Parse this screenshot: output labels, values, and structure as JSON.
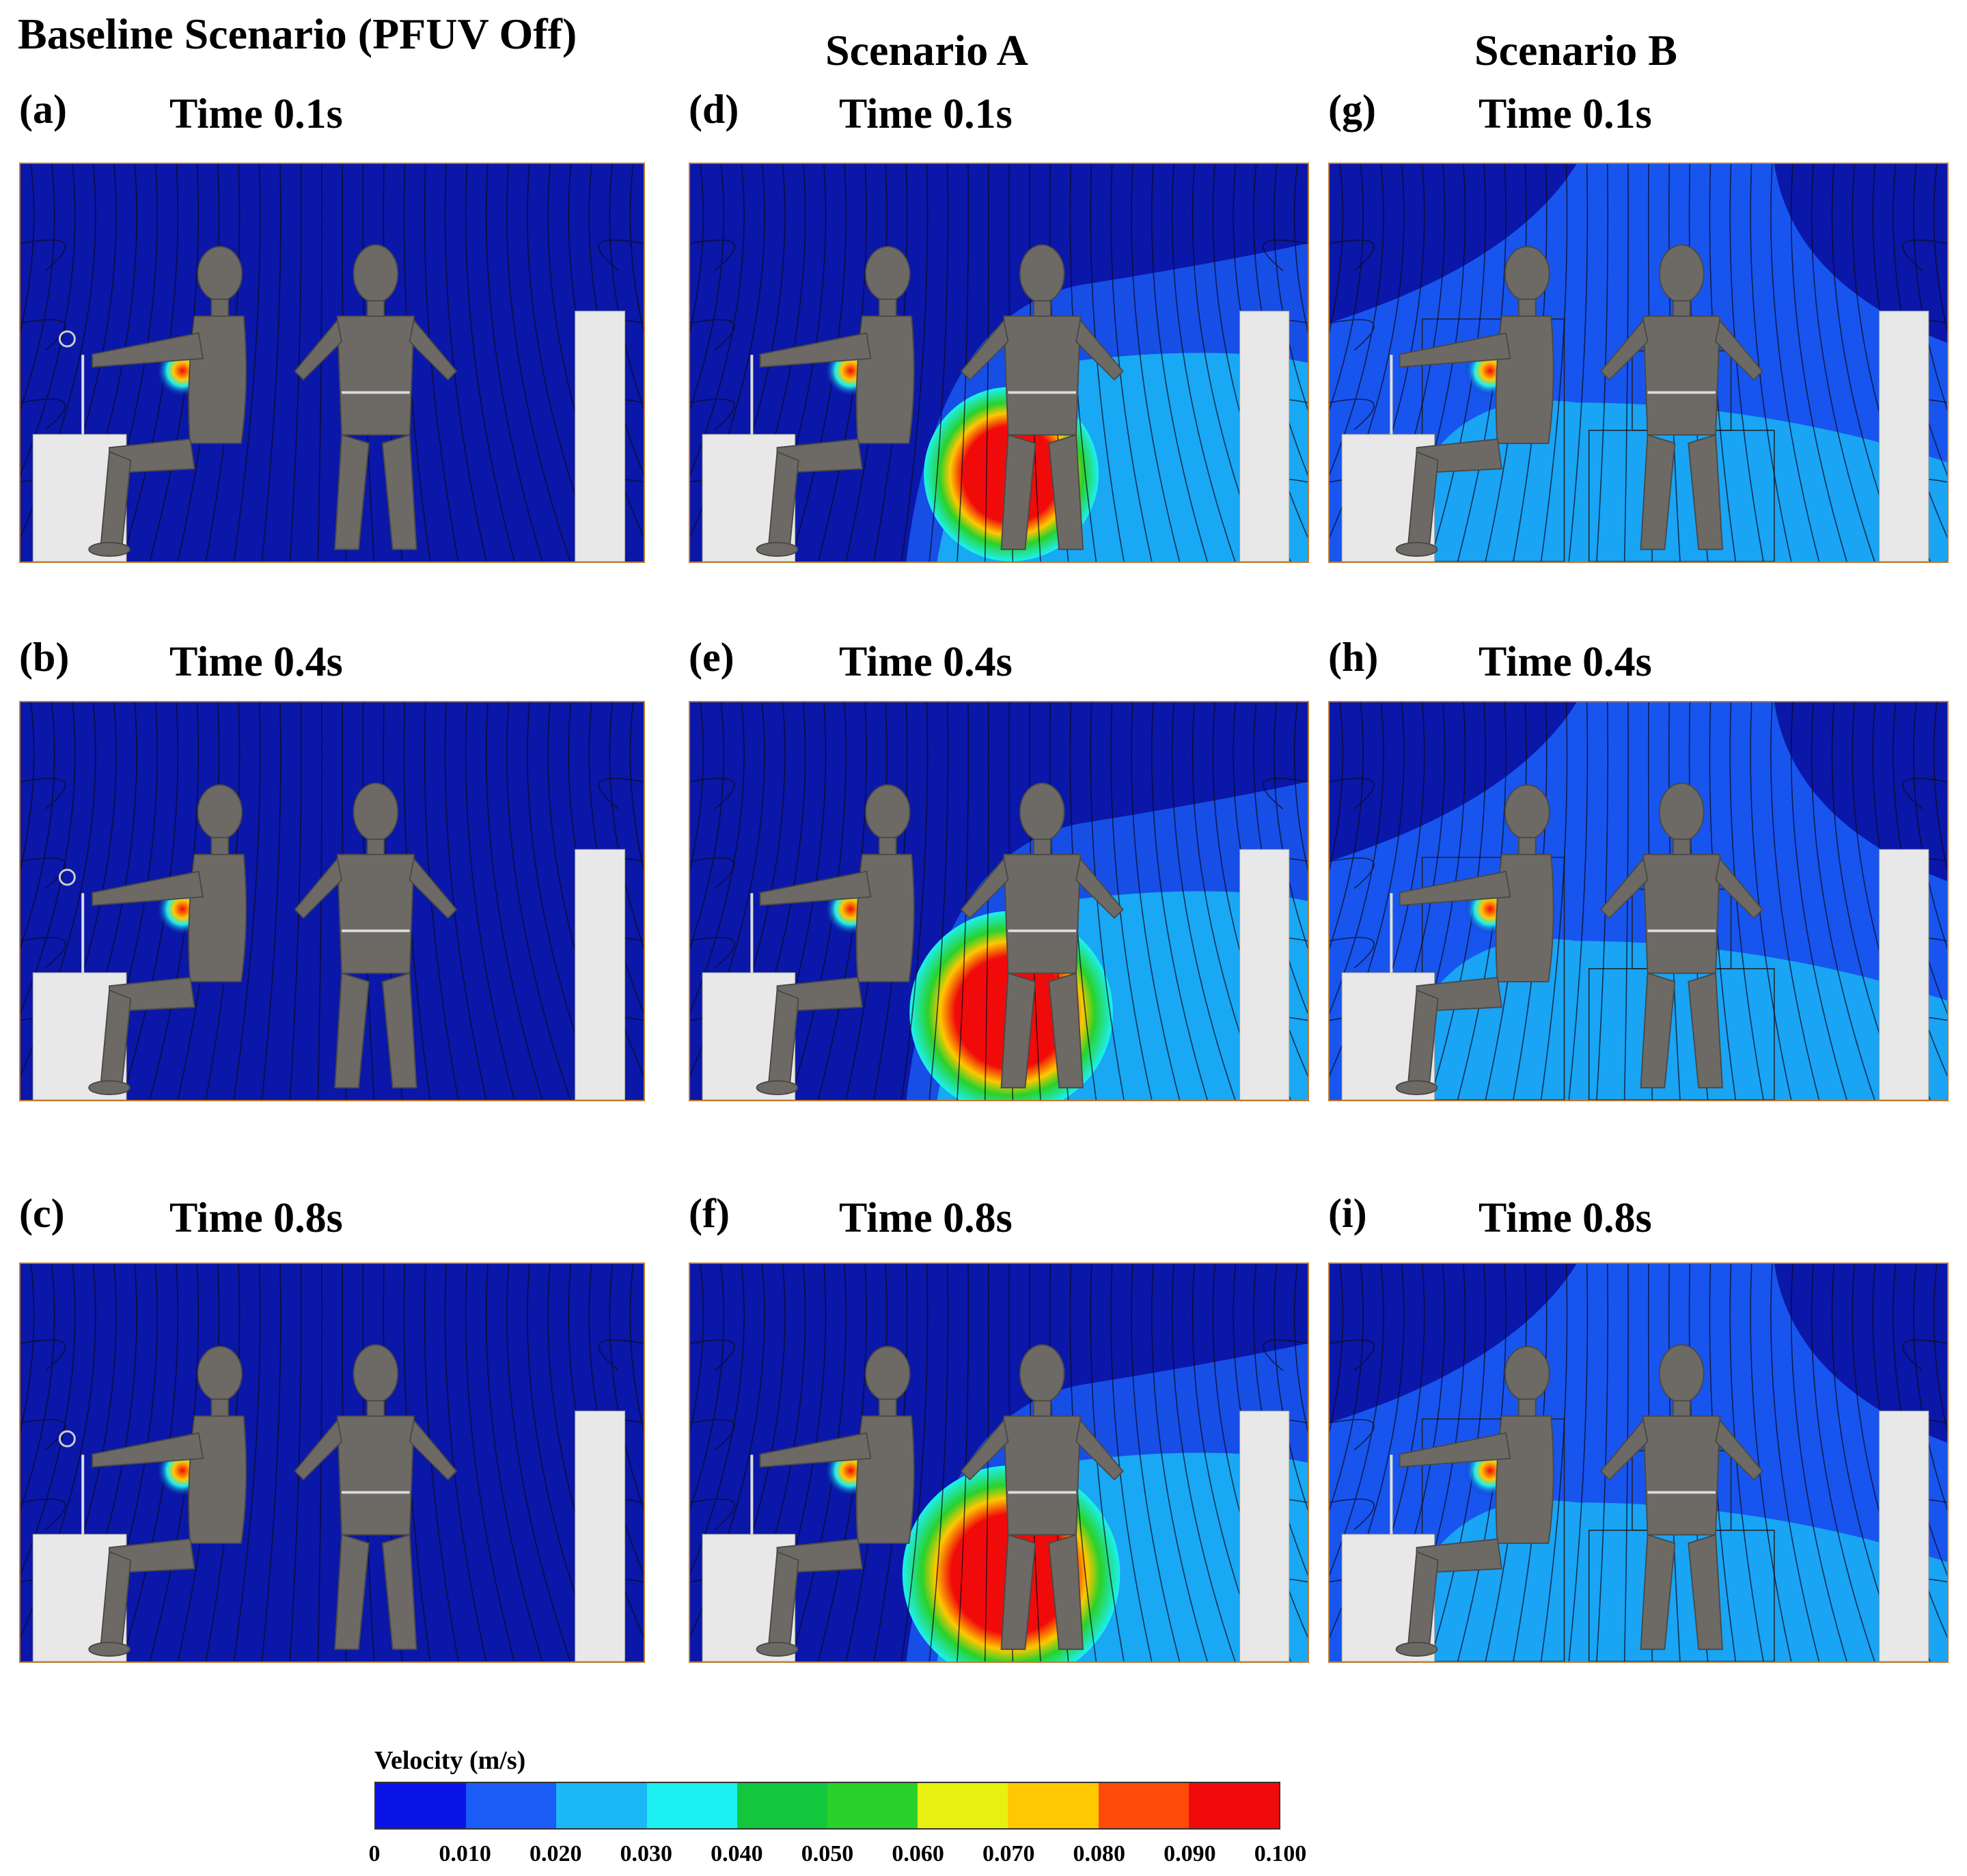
{
  "title": "Baseline Scenario (PFUV Off)",
  "columns": [
    "Scenario A",
    "Scenario B"
  ],
  "panels": [
    {
      "label": "(a)",
      "time": "Time 0.1s",
      "scenario": "baseline",
      "bubble": 0
    },
    {
      "label": "(b)",
      "time": "Time 0.4s",
      "scenario": "baseline",
      "bubble": 0
    },
    {
      "label": "(c)",
      "time": "Time 0.8s",
      "scenario": "baseline",
      "bubble": 0
    },
    {
      "label": "(d)",
      "time": "Time 0.1s",
      "scenario": "A",
      "bubble": 0.55
    },
    {
      "label": "(e)",
      "time": "Time 0.4s",
      "scenario": "A",
      "bubble": 0.85
    },
    {
      "label": "(f)",
      "time": "Time 0.8s",
      "scenario": "A",
      "bubble": 1.0
    },
    {
      "label": "(g)",
      "time": "Time 0.1s",
      "scenario": "B",
      "bubble": 0
    },
    {
      "label": "(h)",
      "time": "Time 0.4s",
      "scenario": "B",
      "bubble": 0
    },
    {
      "label": "(i)",
      "time": "Time 0.8s",
      "scenario": "B",
      "bubble": 0
    }
  ],
  "colorbar": {
    "title": "Velocity (m/s)",
    "ticks": [
      "0",
      "0.010",
      "0.020",
      "0.030",
      "0.040",
      "0.050",
      "0.060",
      "0.070",
      "0.080",
      "0.090",
      "0.100"
    ],
    "colors": [
      "#0a14e6",
      "#1a5cf5",
      "#1ab8f5",
      "#1cf0f0",
      "#12c73c",
      "#2ad12a",
      "#e8f012",
      "#ffc800",
      "#ff4a0a",
      "#f00a0a"
    ]
  }
}
